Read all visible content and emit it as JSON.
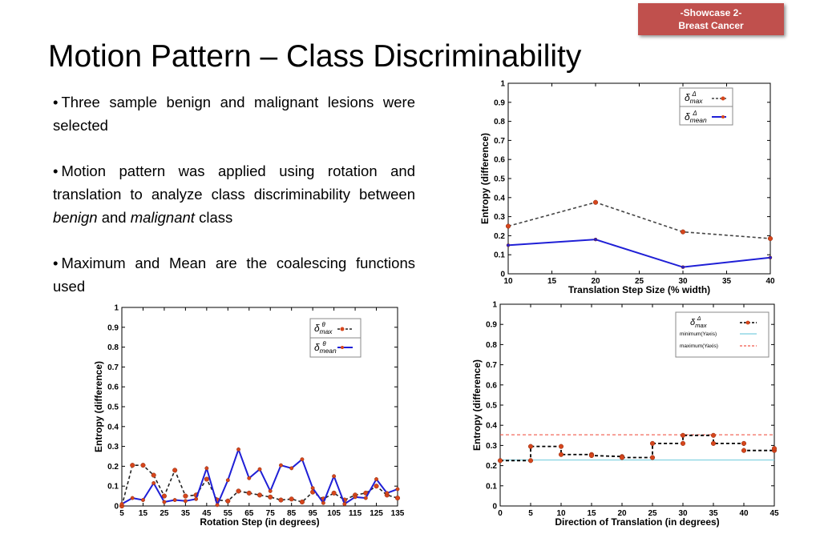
{
  "badge": {
    "line1": "-Showcase 2-",
    "line2": "Breast Cancer"
  },
  "title": "Motion Pattern – Class Discriminability",
  "bullets": [
    {
      "text": "Three sample benign and malignant lesions were selected"
    },
    {
      "pre": "Motion pattern was applied using rotation and translation to analyze class discriminability between ",
      "em1": "benign",
      "mid": " and ",
      "em2": "malignant",
      "post": " class"
    },
    {
      "text": "Maximum and Mean are the coalescing functions used"
    }
  ],
  "colors": {
    "badge": "#c0504d",
    "max_marker": "#d6461c",
    "mean_line": "#1f1fd6",
    "min_line": "#7ccfe0",
    "max_ref_line": "#f0584a"
  },
  "chart_data": [
    {
      "type": "line",
      "id": "translation",
      "xlabel": "Translation Step Size (% width)",
      "ylabel": "Entropy (difference)",
      "xlim": [
        10,
        40
      ],
      "ylim": [
        0,
        1
      ],
      "xticks": [
        10,
        15,
        20,
        25,
        30,
        35,
        40
      ],
      "yticks": [
        0,
        0.1,
        0.2,
        0.3,
        0.4,
        0.5,
        0.6,
        0.7,
        0.8,
        0.9,
        1
      ],
      "x": [
        10,
        20,
        30,
        40
      ],
      "series": [
        {
          "name": "δmaxΔ",
          "style": "dashed",
          "values": [
            0.25,
            0.375,
            0.22,
            0.185
          ]
        },
        {
          "name": "δmeanΔ",
          "style": "solid",
          "values": [
            0.15,
            0.18,
            0.035,
            0.085
          ]
        }
      ],
      "legend": "top-right"
    },
    {
      "type": "line",
      "id": "rotation",
      "xlabel": "Rotation Step (in degrees)",
      "ylabel": "Entropy (difference)",
      "xlim": [
        5,
        135
      ],
      "ylim": [
        0,
        1
      ],
      "xticks": [
        5,
        15,
        25,
        35,
        45,
        55,
        65,
        75,
        85,
        95,
        105,
        115,
        125,
        135
      ],
      "yticks": [
        0,
        0.1,
        0.2,
        0.3,
        0.4,
        0.5,
        0.6,
        0.7,
        0.8,
        0.9,
        1
      ],
      "x": [
        5,
        10,
        15,
        20,
        25,
        30,
        35,
        40,
        45,
        50,
        55,
        60,
        65,
        70,
        75,
        80,
        85,
        90,
        95,
        100,
        105,
        110,
        115,
        120,
        125,
        130,
        135
      ],
      "series": [
        {
          "name": "δmaxθ",
          "style": "dashed",
          "values": [
            0.0,
            0.205,
            0.205,
            0.155,
            0.05,
            0.18,
            0.05,
            0.055,
            0.135,
            0.03,
            0.025,
            0.075,
            0.065,
            0.055,
            0.045,
            0.03,
            0.035,
            0.02,
            0.07,
            0.035,
            0.065,
            0.03,
            0.055,
            0.065,
            0.1,
            0.055,
            0.04
          ]
        },
        {
          "name": "δmeanθ",
          "style": "solid",
          "values": [
            0.01,
            0.04,
            0.03,
            0.115,
            0.02,
            0.03,
            0.025,
            0.035,
            0.19,
            0.005,
            0.13,
            0.285,
            0.14,
            0.185,
            0.075,
            0.205,
            0.19,
            0.235,
            0.09,
            0.015,
            0.15,
            0.01,
            0.045,
            0.04,
            0.135,
            0.065,
            0.085
          ]
        }
      ],
      "legend": "top-right"
    },
    {
      "type": "line",
      "id": "direction",
      "xlabel": "Direction of Translation (in degrees)",
      "ylabel": "Entropy (difference)",
      "xlim": [
        0,
        45
      ],
      "ylim": [
        0,
        1
      ],
      "xticks": [
        0,
        5,
        10,
        15,
        20,
        25,
        30,
        35,
        40,
        45
      ],
      "yticks": [
        0,
        0.1,
        0.2,
        0.3,
        0.4,
        0.5,
        0.6,
        0.7,
        0.8,
        0.9,
        1
      ],
      "series": [
        {
          "name": "δmaxΔ",
          "style": "dashed-step",
          "points": [
            [
              0,
              0.225
            ],
            [
              5,
              0.225
            ],
            [
              5,
              0.295
            ],
            [
              10,
              0.295
            ],
            [
              10,
              0.255
            ],
            [
              15,
              0.255
            ],
            [
              15,
              0.25
            ],
            [
              20,
              0.245
            ],
            [
              20,
              0.24
            ],
            [
              25,
              0.24
            ],
            [
              25,
              0.31
            ],
            [
              30,
              0.31
            ],
            [
              30,
              0.35
            ],
            [
              35,
              0.35
            ],
            [
              35,
              0.31
            ],
            [
              40,
              0.31
            ],
            [
              40,
              0.275
            ],
            [
              45,
              0.275
            ],
            [
              45,
              0.285
            ]
          ]
        },
        {
          "name": "minimum(Yaxis)",
          "style": "solid",
          "values": [
            0.228
          ]
        },
        {
          "name": "maximum(Yaxis)",
          "style": "dashed",
          "values": [
            0.353
          ]
        }
      ],
      "legend": "top-right"
    }
  ]
}
